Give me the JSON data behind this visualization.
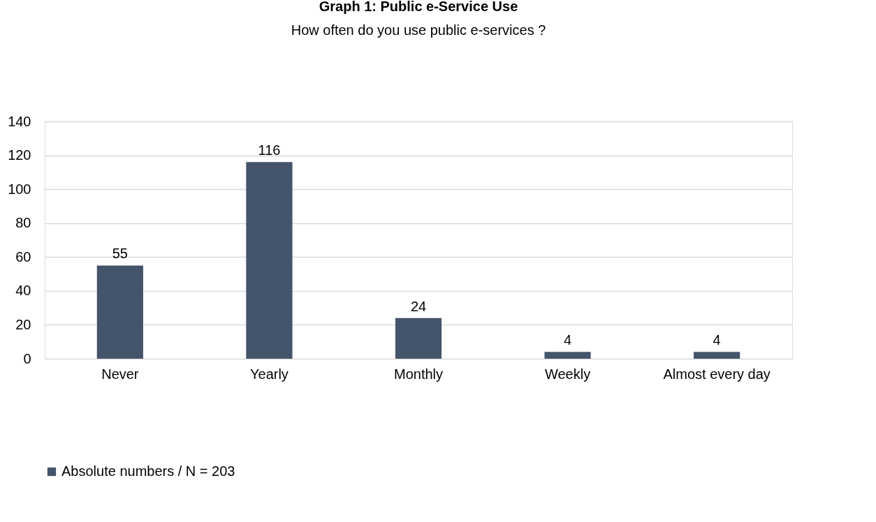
{
  "chart_data": {
    "type": "bar",
    "title": "Graph 1: Public e-Service Use",
    "subtitle": "How often do you use public e-services ?",
    "categories": [
      "Never",
      "Yearly",
      "Monthly",
      "Weekly",
      "Almost every day"
    ],
    "series": [
      {
        "name": "Absolute numbers / N = 203",
        "color": "#44546a",
        "values": [
          55,
          116,
          24,
          4,
          4
        ]
      }
    ],
    "ylim": [
      0,
      140
    ],
    "yticks": [
      0,
      20,
      40,
      60,
      80,
      100,
      120,
      140
    ],
    "grid": "y",
    "legend": "bottom",
    "data_labels": true
  }
}
